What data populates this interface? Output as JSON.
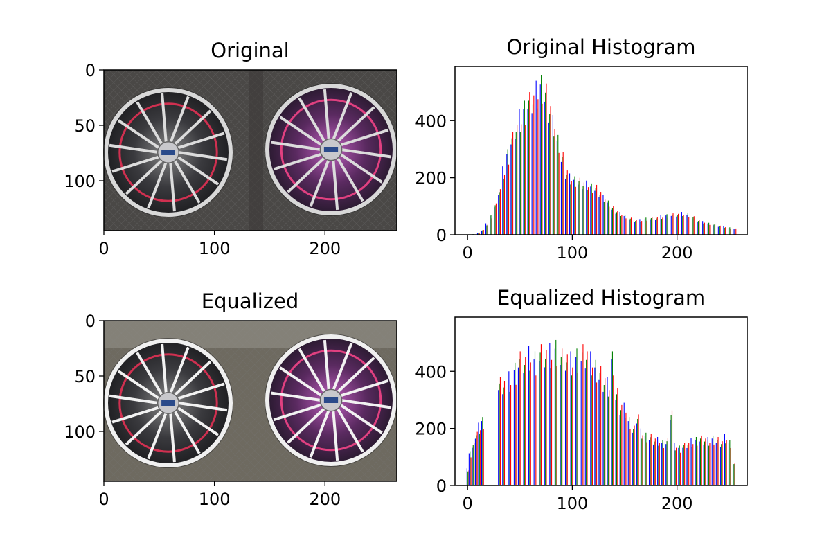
{
  "chart_data": [
    {
      "type": "image",
      "title": "Original",
      "x_ticks": [
        0,
        100,
        200
      ],
      "y_ticks": [
        0,
        50,
        100
      ],
      "xlim": [
        0,
        265
      ],
      "ylim": [
        145,
        0
      ],
      "content": "two alloy car wheels (silver spokes, red inner rim) against a dark textured background"
    },
    {
      "type": "bar",
      "title": "Original Histogram",
      "xlabel": "",
      "ylabel": "",
      "x_ticks": [
        0,
        100,
        200
      ],
      "y_ticks": [
        0,
        200,
        400
      ],
      "xlim": [
        -12,
        267
      ],
      "ylim": [
        0,
        590
      ],
      "colors": [
        "#0000ff",
        "#008000",
        "#ff0000"
      ],
      "bins": [
        [
          0,
          0
        ],
        [
          5,
          2
        ],
        [
          10,
          6
        ],
        [
          14,
          18
        ],
        [
          18,
          40
        ],
        [
          22,
          70
        ],
        [
          26,
          110
        ],
        [
          30,
          170
        ],
        [
          34,
          240
        ],
        [
          38,
          300
        ],
        [
          42,
          360
        ],
        [
          46,
          410
        ],
        [
          50,
          440
        ],
        [
          54,
          470
        ],
        [
          58,
          500
        ],
        [
          62,
          520
        ],
        [
          66,
          540
        ],
        [
          70,
          560
        ],
        [
          74,
          530
        ],
        [
          78,
          480
        ],
        [
          82,
          420
        ],
        [
          86,
          350
        ],
        [
          90,
          290
        ],
        [
          94,
          240
        ],
        [
          98,
          215
        ],
        [
          102,
          205
        ],
        [
          106,
          200
        ],
        [
          110,
          195
        ],
        [
          114,
          190
        ],
        [
          118,
          180
        ],
        [
          122,
          175
        ],
        [
          126,
          160
        ],
        [
          130,
          140
        ],
        [
          134,
          120
        ],
        [
          138,
          100
        ],
        [
          142,
          90
        ],
        [
          146,
          80
        ],
        [
          150,
          70
        ],
        [
          155,
          60
        ],
        [
          160,
          55
        ],
        [
          165,
          55
        ],
        [
          170,
          60
        ],
        [
          175,
          62
        ],
        [
          180,
          65
        ],
        [
          185,
          68
        ],
        [
          190,
          72
        ],
        [
          195,
          75
        ],
        [
          200,
          78
        ],
        [
          205,
          80
        ],
        [
          210,
          75
        ],
        [
          215,
          65
        ],
        [
          220,
          55
        ],
        [
          225,
          48
        ],
        [
          230,
          42
        ],
        [
          235,
          38
        ],
        [
          240,
          34
        ],
        [
          245,
          30
        ],
        [
          250,
          26
        ],
        [
          255,
          22
        ]
      ]
    },
    {
      "type": "image",
      "title": "Equalized",
      "x_ticks": [
        0,
        100,
        200
      ],
      "y_ticks": [
        0,
        50,
        100
      ],
      "xlim": [
        0,
        265
      ],
      "ylim": [
        145,
        0
      ],
      "content": "the same two wheels after histogram equalization, higher contrast and brighter background"
    },
    {
      "type": "bar",
      "title": "Equalized Histogram",
      "xlabel": "",
      "ylabel": "",
      "x_ticks": [
        0,
        100,
        200
      ],
      "y_ticks": [
        0,
        200,
        400
      ],
      "xlim": [
        -12,
        267
      ],
      "ylim": [
        0,
        590
      ],
      "colors": [
        "#0000ff",
        "#008000",
        "#ff0000"
      ],
      "bins": [
        [
          0,
          60
        ],
        [
          2,
          120
        ],
        [
          5,
          150
        ],
        [
          8,
          200
        ],
        [
          11,
          220
        ],
        [
          14,
          240
        ],
        [
          30,
          380
        ],
        [
          34,
          390
        ],
        [
          40,
          400
        ],
        [
          45,
          430
        ],
        [
          49,
          470
        ],
        [
          54,
          480
        ],
        [
          59,
          490
        ],
        [
          64,
          470
        ],
        [
          69,
          495
        ],
        [
          74,
          505
        ],
        [
          79,
          500
        ],
        [
          84,
          510
        ],
        [
          89,
          480
        ],
        [
          94,
          490
        ],
        [
          99,
          470
        ],
        [
          104,
          480
        ],
        [
          109,
          495
        ],
        [
          113,
          500
        ],
        [
          118,
          470
        ],
        [
          122,
          440
        ],
        [
          126,
          420
        ],
        [
          130,
          400
        ],
        [
          134,
          380
        ],
        [
          138,
          470
        ],
        [
          142,
          340
        ],
        [
          146,
          300
        ],
        [
          150,
          290
        ],
        [
          154,
          240
        ],
        [
          158,
          210
        ],
        [
          162,
          265
        ],
        [
          166,
          200
        ],
        [
          170,
          185
        ],
        [
          174,
          180
        ],
        [
          178,
          175
        ],
        [
          182,
          170
        ],
        [
          186,
          160
        ],
        [
          190,
          165
        ],
        [
          194,
          280
        ],
        [
          198,
          150
        ],
        [
          202,
          140
        ],
        [
          206,
          150
        ],
        [
          210,
          160
        ],
        [
          214,
          165
        ],
        [
          218,
          170
        ],
        [
          222,
          175
        ],
        [
          226,
          175
        ],
        [
          230,
          170
        ],
        [
          234,
          175
        ],
        [
          238,
          170
        ],
        [
          242,
          165
        ],
        [
          246,
          180
        ],
        [
          250,
          160
        ],
        [
          254,
          80
        ]
      ]
    }
  ]
}
